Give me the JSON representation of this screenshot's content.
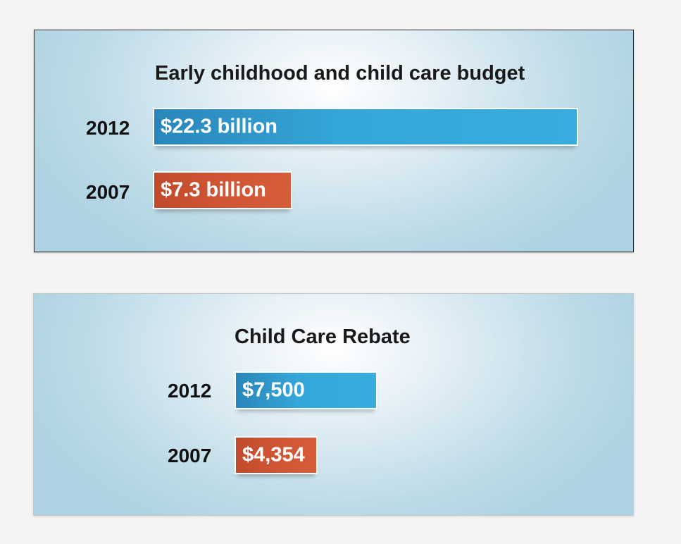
{
  "chart_data": [
    {
      "type": "bar",
      "orientation": "horizontal",
      "title": "Early childhood and child care budget",
      "categories": [
        "2012",
        "2007"
      ],
      "values": [
        22.3,
        7.3
      ],
      "value_labels": [
        "$22.3 billion",
        "$7.3 billion"
      ],
      "unit": "billion",
      "colors": [
        "#34a7d8",
        "#cf5634"
      ],
      "max_value": 22.3
    },
    {
      "type": "bar",
      "orientation": "horizontal",
      "title": "Child Care Rebate",
      "categories": [
        "2012",
        "2007"
      ],
      "values": [
        7500,
        4354
      ],
      "value_labels": [
        "$7,500",
        "$4,354"
      ],
      "unit": "$",
      "colors": [
        "#34a7d8",
        "#cf5634"
      ],
      "max_value": 22300
    }
  ]
}
